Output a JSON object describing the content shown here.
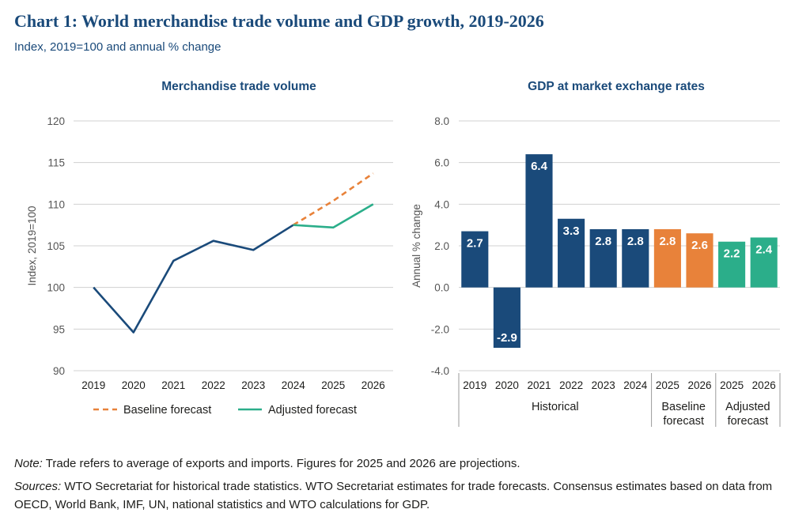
{
  "title": "Chart 1: World merchandise trade volume and GDP growth, 2019-2026",
  "subtitle": "Index, 2019=100 and annual % change",
  "notes": {
    "note_label": "Note:",
    "note_text": " Trade refers to average of exports and imports. Figures for 2025 and 2026 are projections.",
    "sources_label": "Sources:",
    "sources_text": " WTO Secretariat for historical trade statistics. WTO Secretariat estimates for trade forecasts. Consensus estimates based on data from OECD, World Bank, IMF, UN, national statistics and WTO calculations for GDP."
  },
  "colors": {
    "historical": "#1a4a7a",
    "baseline": "#e8823a",
    "adjusted": "#2bae8a",
    "grid": "#d0d0d0",
    "axis_text": "#555555"
  },
  "chart_data": [
    {
      "type": "line",
      "title": "Merchandise trade volume",
      "ylabel": "Index, 2019=100",
      "xlabel": "",
      "categories": [
        "2019",
        "2020",
        "2021",
        "2022",
        "2023",
        "2024",
        "2025",
        "2026"
      ],
      "ylim": [
        90,
        120
      ],
      "yticks": [
        90,
        95,
        100,
        105,
        110,
        115,
        120
      ],
      "grid": true,
      "legend_position": "bottom",
      "series": [
        {
          "role": "historical",
          "style": "solid",
          "x": [
            "2019",
            "2020",
            "2021",
            "2022",
            "2023",
            "2024"
          ],
          "values": [
            100,
            94.6,
            103.2,
            105.6,
            104.5,
            107.5
          ]
        },
        {
          "role": "baseline",
          "name": "Baseline forecast",
          "style": "dashed",
          "x": [
            "2024",
            "2025",
            "2026"
          ],
          "values": [
            107.5,
            110.4,
            113.7
          ]
        },
        {
          "role": "adjusted",
          "name": "Adjusted forecast",
          "style": "solid",
          "x": [
            "2024",
            "2025",
            "2026"
          ],
          "values": [
            107.5,
            107.2,
            110.0
          ]
        }
      ]
    },
    {
      "type": "bar",
      "title": "GDP at market exchange rates",
      "ylabel": "Annual % change",
      "xlabel": "",
      "ylim": [
        -4.0,
        8.0
      ],
      "yticks": [
        "-4.0",
        "-2.0",
        "0.0",
        "2.0",
        "4.0",
        "6.0",
        "8.0"
      ],
      "grid": true,
      "bars": [
        {
          "category": "2019",
          "value": 2.7,
          "label": "2.7",
          "role": "historical"
        },
        {
          "category": "2020",
          "value": -2.9,
          "label": "-2.9",
          "role": "historical"
        },
        {
          "category": "2021",
          "value": 6.4,
          "label": "6.4",
          "role": "historical"
        },
        {
          "category": "2022",
          "value": 3.3,
          "label": "3.3",
          "role": "historical"
        },
        {
          "category": "2023",
          "value": 2.8,
          "label": "2.8",
          "role": "historical"
        },
        {
          "category": "2024",
          "value": 2.8,
          "label": "2.8",
          "role": "historical"
        },
        {
          "category": "2025",
          "value": 2.8,
          "label": "2.8",
          "role": "baseline"
        },
        {
          "category": "2026",
          "value": 2.6,
          "label": "2.6",
          "role": "baseline"
        },
        {
          "category": "2025",
          "value": 2.2,
          "label": "2.2",
          "role": "adjusted"
        },
        {
          "category": "2026",
          "value": 2.4,
          "label": "2.4",
          "role": "adjusted"
        }
      ],
      "groups": [
        {
          "label_lines": [
            "Historical"
          ],
          "count": 6
        },
        {
          "label_lines": [
            "Baseline",
            "forecast"
          ],
          "count": 2
        },
        {
          "label_lines": [
            "Adjusted",
            "forecast"
          ],
          "count": 2
        }
      ]
    }
  ]
}
